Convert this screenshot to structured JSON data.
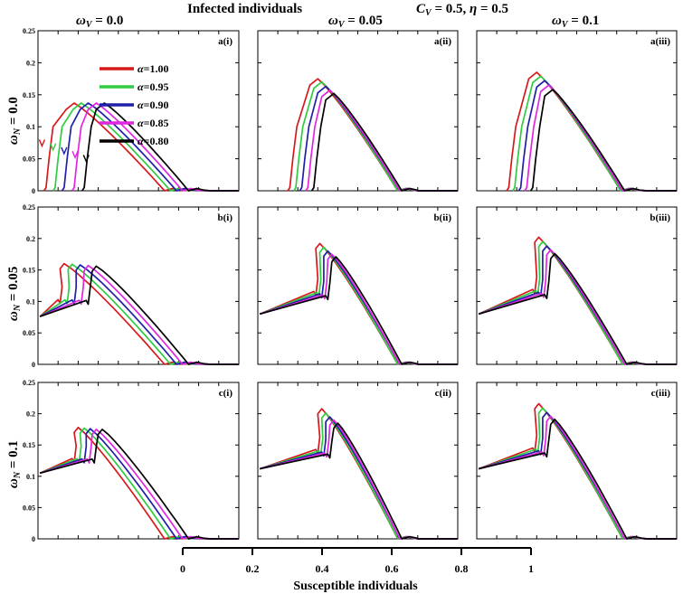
{
  "chart_data": {
    "type": "line",
    "title": "Infected individuals",
    "subtitle": "C_V = 0.5, η = 0.5",
    "subtitle_parts": {
      "c": "C",
      "c_sub": "V",
      "rest": " = 0.5, ",
      "eta": "η",
      "eta_rest": " = 0.5"
    },
    "xlabel": "Susceptible individuals",
    "x_ticks": [
      "0",
      "0.2",
      "0.4",
      "0.6",
      "0.8",
      "1"
    ],
    "xlim": [
      0,
      1
    ],
    "ylim": [
      0,
      0.25
    ],
    "y_ticks": [
      "0",
      "0.05",
      "0.1",
      "0.15",
      "0.2",
      "0.25"
    ],
    "column_headers": [
      {
        "pre": "ω",
        "sub": "V",
        "post": " = 0.0"
      },
      {
        "pre": "ω",
        "sub": "V",
        "post": " = 0.05"
      },
      {
        "pre": "ω",
        "sub": "V",
        "post": " = 0.1"
      }
    ],
    "row_headers": [
      {
        "pre": "ω",
        "sub": "N",
        "post": " = 0.0"
      },
      {
        "pre": "ω",
        "sub": "N",
        "post": " = 0.05"
      },
      {
        "pre": "ω",
        "sub": "N",
        "post": " = 0.1"
      }
    ],
    "legend": {
      "placement": "top-left",
      "entries": [
        {
          "symbol": "α",
          "label": "=1.00",
          "color": "#d7191c"
        },
        {
          "symbol": "α",
          "label": "=0.95",
          "color": "#2ecc40"
        },
        {
          "symbol": "α",
          "label": "=0.90",
          "color": "#1f1fa8"
        },
        {
          "symbol": "α",
          "label": "=0.85",
          "color": "#e026e0"
        },
        {
          "symbol": "α",
          "label": "=0.80",
          "color": "#000000"
        }
      ]
    },
    "series_alphas": [
      1.0,
      0.95,
      0.9,
      0.85,
      0.8
    ],
    "panels": [
      {
        "label": "a(i)",
        "start_s": 0.0,
        "start_i": 0.0,
        "peaks": [
          [
            0.18,
            0.137
          ],
          [
            0.215,
            0.137
          ],
          [
            0.25,
            0.137
          ],
          [
            0.29,
            0.137
          ],
          [
            0.33,
            0.137
          ]
        ],
        "ends": [
          0.63,
          0.66,
          0.69,
          0.72,
          0.75
        ],
        "tail": 0.86
      },
      {
        "label": "a(ii)",
        "start_s": 0.0,
        "start_i": 0.0,
        "peaks": [
          [
            0.3,
            0.175
          ],
          [
            0.32,
            0.17
          ],
          [
            0.34,
            0.163
          ],
          [
            0.36,
            0.157
          ],
          [
            0.38,
            0.152
          ]
        ],
        "ends": [
          0.7,
          0.7,
          0.71,
          0.71,
          0.72
        ],
        "tail": 0.8
      },
      {
        "label": "a(iii)",
        "start_s": 0.0,
        "start_i": 0.0,
        "peaks": [
          [
            0.3,
            0.185
          ],
          [
            0.32,
            0.179
          ],
          [
            0.34,
            0.172
          ],
          [
            0.36,
            0.165
          ],
          [
            0.38,
            0.158
          ]
        ],
        "ends": [
          0.72,
          0.72,
          0.73,
          0.73,
          0.74
        ],
        "tail": 0.85
      },
      {
        "label": "b(i)",
        "start_s": 0.0,
        "start_i": 0.076,
        "peaks": [
          [
            0.13,
            0.16
          ],
          [
            0.17,
            0.159
          ],
          [
            0.21,
            0.158
          ],
          [
            0.25,
            0.157
          ],
          [
            0.29,
            0.156
          ]
        ],
        "ends": [
          0.63,
          0.66,
          0.69,
          0.72,
          0.75
        ],
        "tail": 0.86
      },
      {
        "label": "b(ii)",
        "start_s": 0.0,
        "start_i": 0.08,
        "peaks": [
          [
            0.31,
            0.192
          ],
          [
            0.33,
            0.186
          ],
          [
            0.35,
            0.18
          ],
          [
            0.37,
            0.175
          ],
          [
            0.39,
            0.171
          ]
        ],
        "ends": [
          0.7,
          0.7,
          0.71,
          0.71,
          0.72
        ],
        "tail": 0.8
      },
      {
        "label": "b(iii)",
        "start_s": 0.0,
        "start_i": 0.08,
        "peaks": [
          [
            0.31,
            0.202
          ],
          [
            0.33,
            0.195
          ],
          [
            0.35,
            0.188
          ],
          [
            0.37,
            0.182
          ],
          [
            0.39,
            0.176
          ]
        ],
        "ends": [
          0.73,
          0.73,
          0.74,
          0.74,
          0.75
        ],
        "tail": 0.85
      },
      {
        "label": "c(i)",
        "start_s": 0.0,
        "start_i": 0.105,
        "peaks": [
          [
            0.2,
            0.178
          ],
          [
            0.23,
            0.177
          ],
          [
            0.26,
            0.176
          ],
          [
            0.29,
            0.175
          ],
          [
            0.32,
            0.175
          ]
        ],
        "ends": [
          0.63,
          0.66,
          0.69,
          0.72,
          0.75
        ],
        "tail": 0.86
      },
      {
        "label": "c(ii)",
        "start_s": 0.0,
        "start_i": 0.112,
        "peaks": [
          [
            0.32,
            0.208
          ],
          [
            0.34,
            0.201
          ],
          [
            0.36,
            0.195
          ],
          [
            0.38,
            0.19
          ],
          [
            0.4,
            0.185
          ]
        ],
        "ends": [
          0.7,
          0.7,
          0.71,
          0.71,
          0.72
        ],
        "tail": 0.8
      },
      {
        "label": "c(iii)",
        "start_s": 0.0,
        "start_i": 0.112,
        "peaks": [
          [
            0.31,
            0.216
          ],
          [
            0.33,
            0.209
          ],
          [
            0.35,
            0.202
          ],
          [
            0.37,
            0.196
          ],
          [
            0.39,
            0.191
          ]
        ],
        "ends": [
          0.73,
          0.73,
          0.74,
          0.74,
          0.75
        ],
        "tail": 0.85
      }
    ]
  }
}
